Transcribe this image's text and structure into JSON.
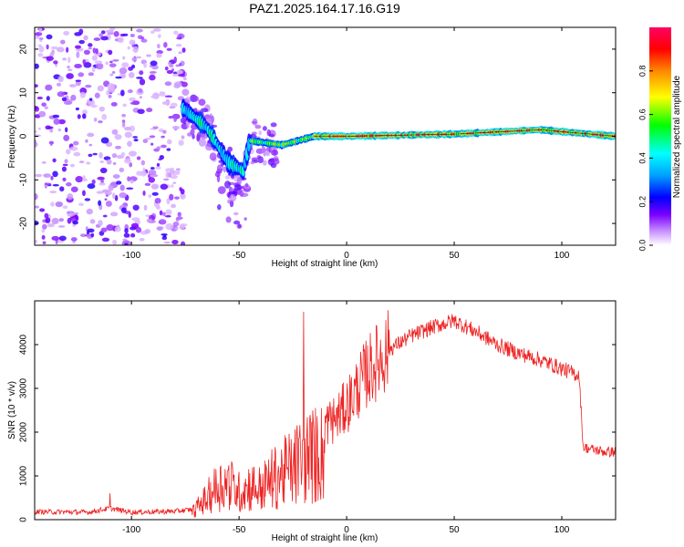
{
  "figure": {
    "title": "PAZ1.2025.164.17.16.G19"
  },
  "chart_data": [
    {
      "type": "heatmap",
      "xlabel": "Height of straight line (km)",
      "ylabel": "Frequency (Hz)",
      "xlim": [
        -145,
        125
      ],
      "ylim": [
        -25,
        25
      ],
      "xticks": [
        -100,
        -50,
        0,
        50,
        100
      ],
      "yticks": [
        -20,
        -10,
        0,
        10,
        20
      ],
      "colorbar": {
        "label": "Normalized spectral amplitude",
        "range": [
          0,
          1
        ],
        "ticks": [
          "0.0",
          "0.2",
          "0.4",
          "0.6",
          "0.8"
        ],
        "colormap": "rainbow (violet = low, red = high)"
      },
      "ridge": {
        "description_points": [
          {
            "x": -75,
            "y": 6
          },
          {
            "x": -65,
            "y": 2
          },
          {
            "x": -55,
            "y": -6
          },
          {
            "x": -48,
            "y": -8
          },
          {
            "x": -45,
            "y": -1
          },
          {
            "x": -30,
            "y": -2
          },
          {
            "x": -15,
            "y": 0
          },
          {
            "x": 0,
            "y": 0
          },
          {
            "x": 50,
            "y": 0.5
          },
          {
            "x": 90,
            "y": 1.5
          },
          {
            "x": 125,
            "y": 0
          }
        ]
      },
      "noise_region_x": [
        -145,
        -75
      ]
    },
    {
      "type": "line",
      "xlabel": "Height of straight line (km)",
      "ylabel": "SNR (10 * v/v)",
      "xlim": [
        -145,
        125
      ],
      "ylim": [
        0,
        5000
      ],
      "xticks": [
        -100,
        -50,
        0,
        50,
        100
      ],
      "yticks": [
        0,
        1000,
        2000,
        3000,
        4000
      ],
      "color": "#ee2222",
      "envelope_x": [
        -145,
        -120,
        -110,
        -100,
        -90,
        -80,
        -72,
        -65,
        -60,
        -55,
        -50,
        -45,
        -40,
        -35,
        -30,
        -25,
        -20,
        -15,
        -10,
        -5,
        0,
        5,
        10,
        20,
        30,
        40,
        50,
        60,
        70,
        80,
        90,
        100,
        105,
        108,
        110,
        115,
        120,
        125
      ],
      "envelope_y": [
        180,
        170,
        260,
        170,
        180,
        190,
        230,
        700,
        1100,
        1200,
        900,
        1100,
        1000,
        1300,
        1500,
        1700,
        2000,
        2100,
        2200,
        2300,
        2600,
        3000,
        3400,
        3900,
        4200,
        4400,
        4550,
        4300,
        4000,
        3800,
        3650,
        3450,
        3350,
        3300,
        1650,
        1600,
        1550,
        1550
      ],
      "spikes": [
        {
          "x": -20,
          "y": 4750
        },
        {
          "x": -110,
          "y": 600
        }
      ]
    }
  ]
}
